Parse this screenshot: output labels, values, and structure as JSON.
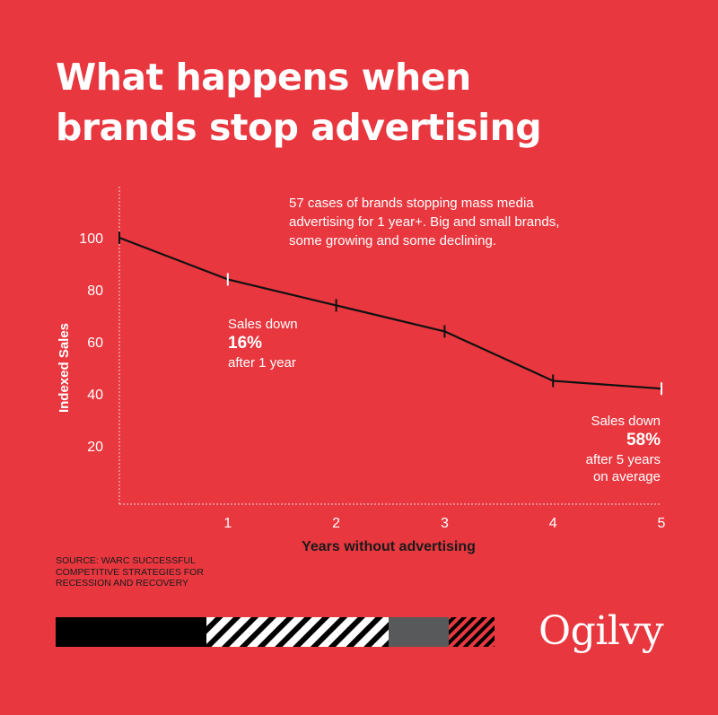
{
  "title_lines": [
    "What happens when",
    "brands stop advertising"
  ],
  "note_lines": [
    "57 cases of brands stopping mass media",
    "advertising for 1 year+. Big and small brands,",
    "some growing and some declining."
  ],
  "callout_1": {
    "line1": "Sales down",
    "value": "16%",
    "line2": "after 1 year"
  },
  "callout_2": {
    "line1": "Sales down",
    "value": "58%",
    "line2": "after 5 years",
    "line3": "on average"
  },
  "source_lines": [
    "SOURCE: WARC SUCCESSFUL",
    "COMPETITIVE STRATEGIES FOR",
    "RECESSION AND RECOVERY"
  ],
  "brand": "Ogilvy",
  "colors": {
    "background": "#e8373f",
    "line": "#111111",
    "text": "#ffffff",
    "source_text": "#1a1a1a",
    "bar_black": "#000000",
    "bar_gray": "#58595b"
  },
  "chart_data": {
    "type": "line",
    "x": [
      0,
      1,
      2,
      3,
      4,
      5
    ],
    "y": [
      100,
      84,
      74,
      64,
      45,
      42
    ],
    "xlabel": "Years without advertising",
    "ylabel": "Indexed Sales",
    "x_ticks": [
      "1",
      "2",
      "3",
      "4",
      "5"
    ],
    "y_ticks": [
      "20",
      "40",
      "60",
      "80",
      "100"
    ],
    "xlim": [
      0,
      5
    ],
    "ylim": [
      0,
      120
    ],
    "grid": false
  }
}
